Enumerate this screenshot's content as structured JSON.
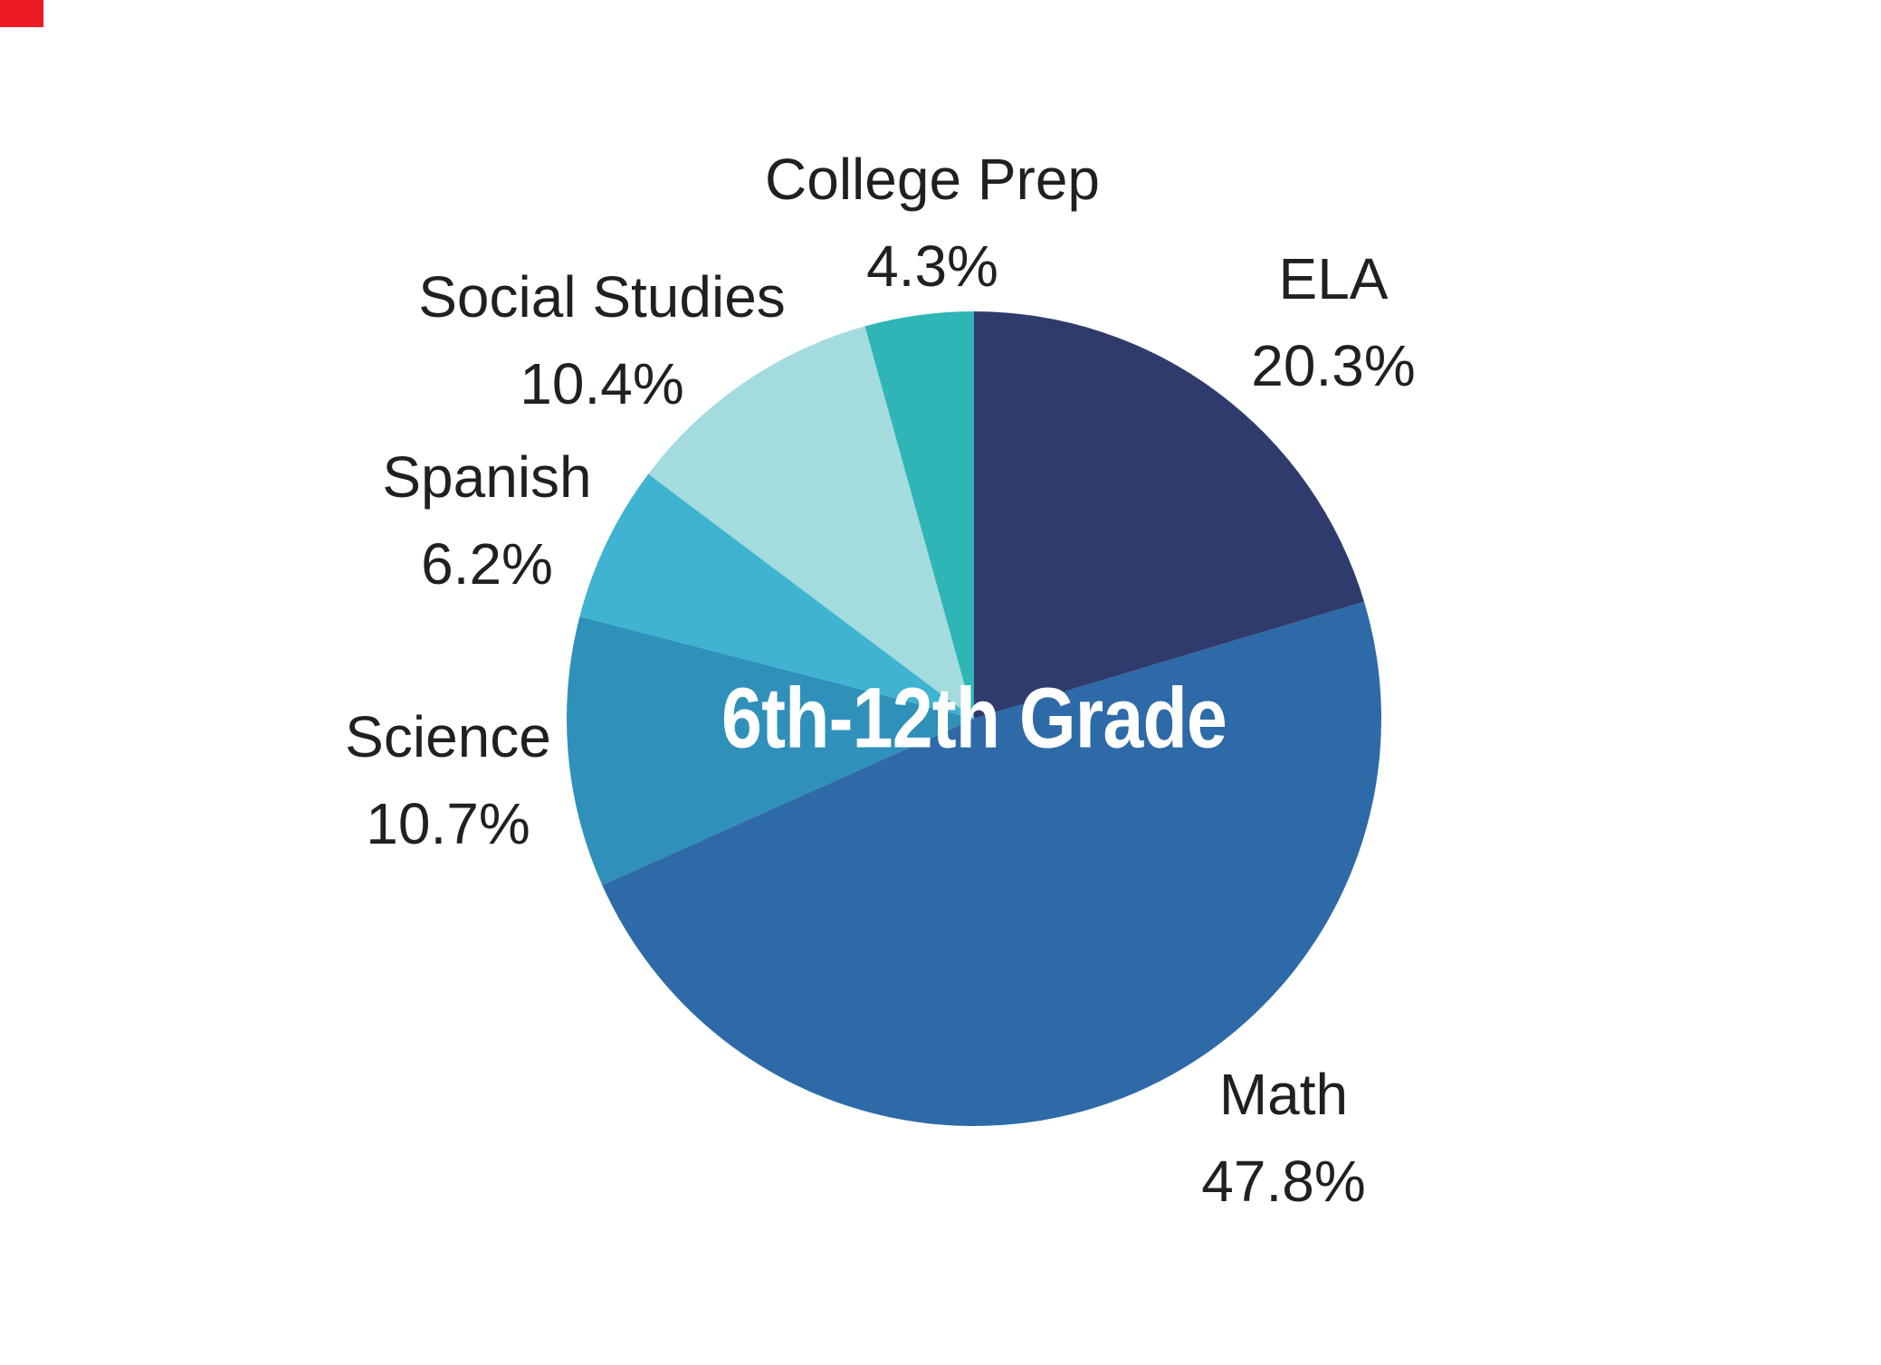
{
  "chart_data": {
    "type": "pie",
    "title": "6th-12th Grade",
    "slices": [
      {
        "label": "ELA",
        "pct": "20.3%",
        "value": 20.3,
        "color": "#2f3b6d"
      },
      {
        "label": "Math",
        "pct": "47.8%",
        "value": 47.8,
        "color": "#2e6aa8"
      },
      {
        "label": "Science",
        "pct": "10.7%",
        "value": 10.7,
        "color": "#2f90ba"
      },
      {
        "label": "Spanish",
        "pct": "6.2%",
        "value": 6.2,
        "color": "#3fb3d1"
      },
      {
        "label": "Social Studies",
        "pct": "10.4%",
        "value": 10.4,
        "color": "#a3dbde"
      },
      {
        "label": "College Prep",
        "pct": "4.3%",
        "value": 4.3,
        "color": "#2fb5b6"
      }
    ],
    "start_angle_deg": -90,
    "direction": "clockwise",
    "legend_position": "none",
    "center_label": "6th-12th Grade",
    "center_label_color": "#ffffff",
    "label_text_color": "#231f20",
    "background": "#ffffff"
  },
  "decorations": {
    "corner_marker_color": "#ed1c24"
  }
}
